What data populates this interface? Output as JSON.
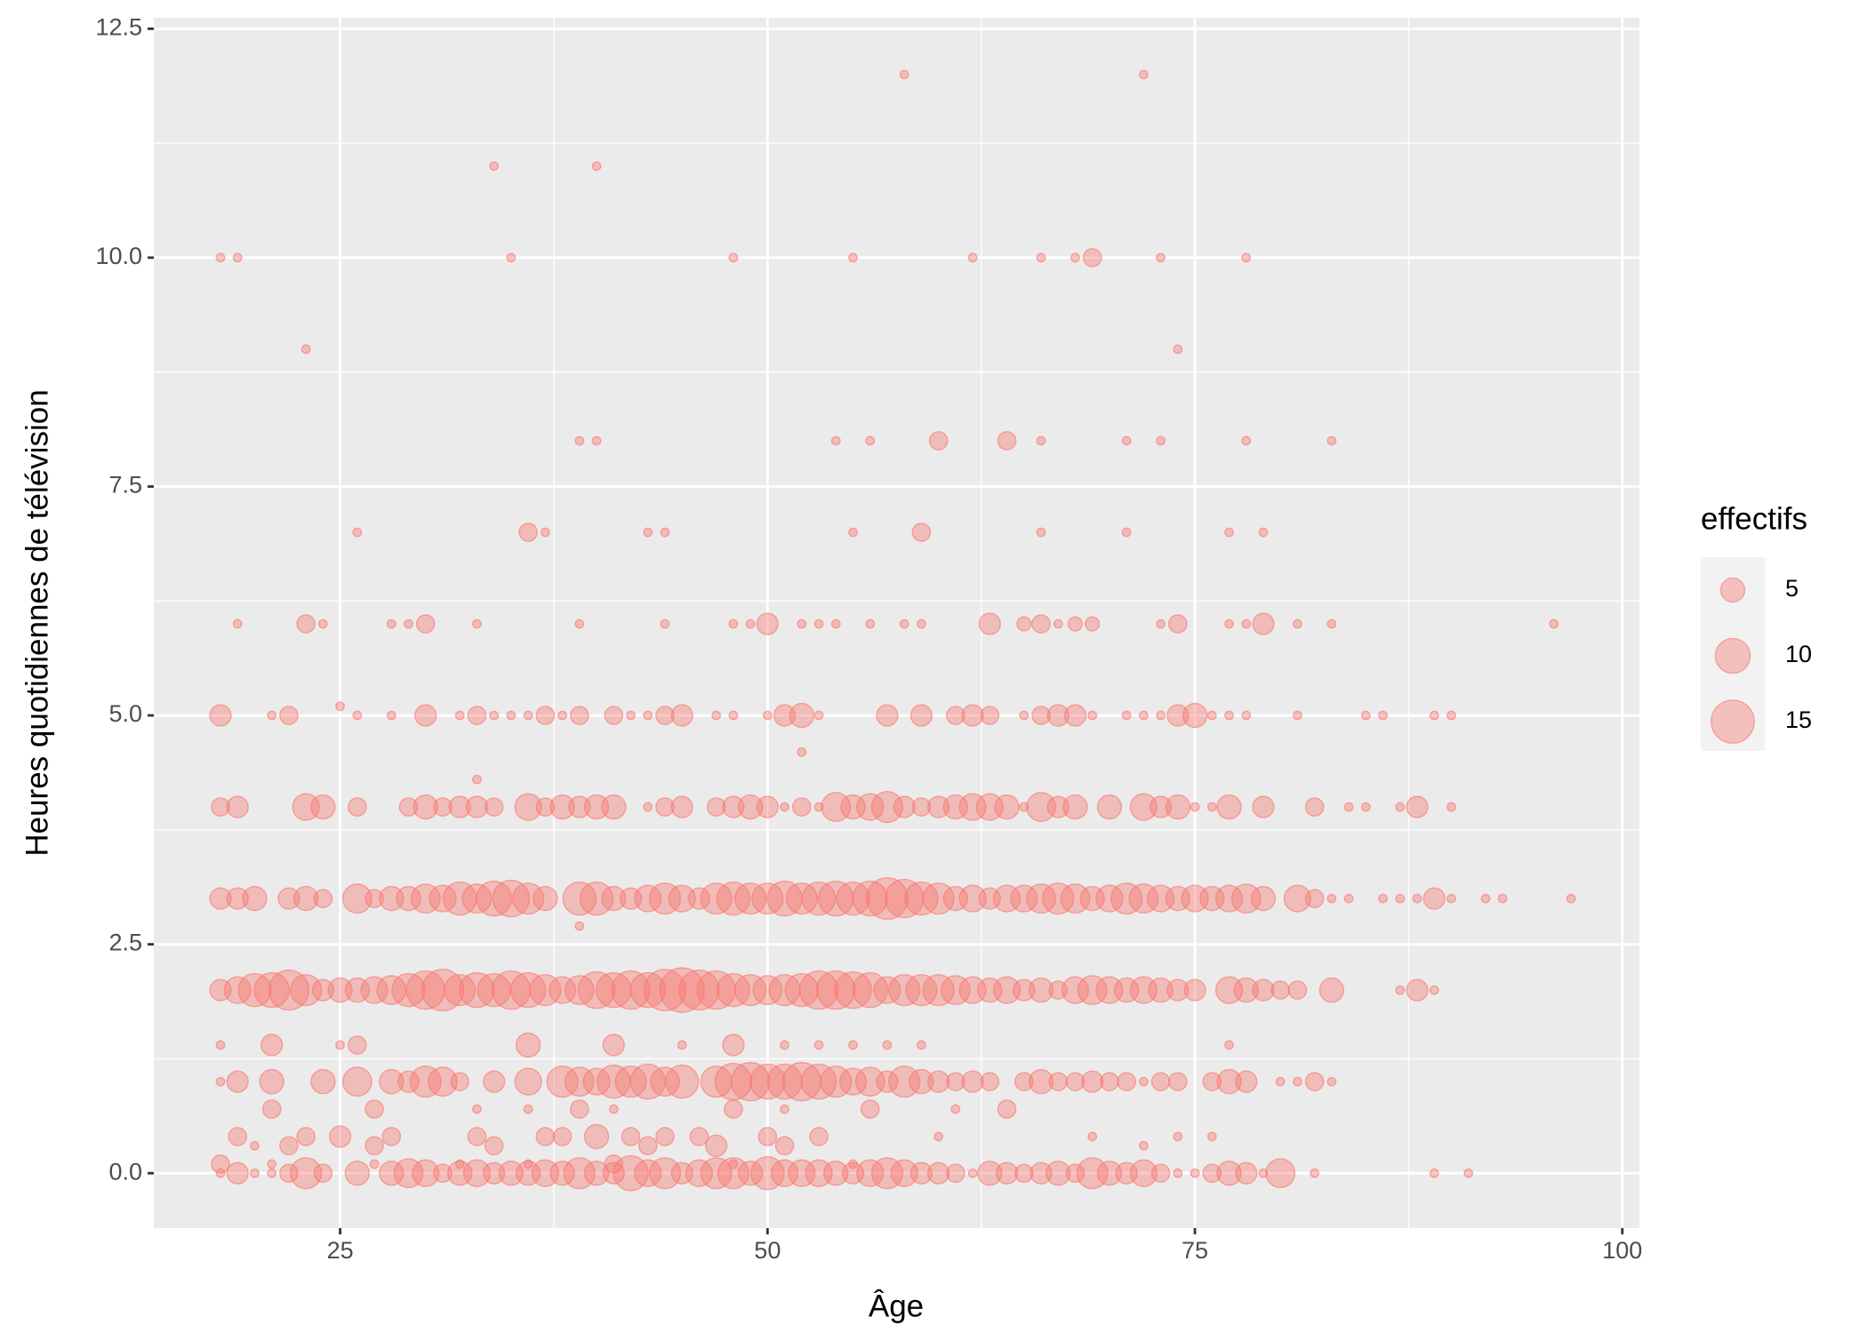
{
  "chart_data": {
    "type": "scatter",
    "x_label": "Âge",
    "y_label": "Heures quotidiennes de télévision",
    "xlim": [
      14.1,
      101
    ],
    "ylim": [
      -0.6,
      12.62
    ],
    "xticks": [
      25,
      50,
      75,
      100
    ],
    "yticks": [
      {
        "value": 0,
        "label": "0.0"
      },
      2.5,
      {
        "value": 5,
        "label": "5.0"
      },
      7.5,
      {
        "value": 10,
        "label": "10.0"
      },
      12.5
    ],
    "xminor": [
      37.5,
      62.5,
      87.5
    ],
    "yminor": [
      1.25,
      3.75,
      6.25,
      8.75,
      11.25
    ],
    "grid": true,
    "color": "#F8766D",
    "size_legend": {
      "title": "effectifs",
      "breaks": [
        5,
        10,
        15
      ]
    },
    "x": [
      58,
      72,
      34,
      40,
      18,
      19,
      35,
      48,
      55,
      62,
      66,
      68,
      69,
      73,
      78,
      23,
      74,
      39,
      40,
      54,
      56,
      60,
      64,
      66,
      71,
      73,
      78,
      83,
      26,
      36,
      37,
      43,
      44,
      55,
      59,
      66,
      71,
      77,
      79,
      19,
      23,
      24,
      28,
      29,
      30,
      33,
      39,
      44,
      48,
      49,
      50,
      52,
      53,
      54,
      56,
      58,
      59,
      63,
      65,
      66,
      67,
      68,
      69,
      73,
      74,
      77,
      78,
      79,
      81,
      83,
      96,
      25,
      18,
      21,
      22,
      26,
      28,
      30,
      32,
      33,
      34,
      35,
      36,
      37,
      38,
      39,
      41,
      42,
      43,
      44,
      45,
      47,
      48,
      50,
      51,
      52,
      53,
      57,
      59,
      61,
      62,
      63,
      65,
      66,
      67,
      68,
      69,
      71,
      72,
      73,
      74,
      75,
      76,
      77,
      78,
      81,
      85,
      86,
      89,
      90,
      52,
      33,
      18,
      19,
      23,
      24,
      26,
      29,
      30,
      31,
      32,
      33,
      34,
      36,
      37,
      38,
      39,
      40,
      41,
      43,
      44,
      45,
      47,
      48,
      49,
      50,
      51,
      52,
      53,
      54,
      55,
      56,
      57,
      58,
      59,
      60,
      61,
      62,
      63,
      64,
      65,
      66,
      67,
      68,
      70,
      72,
      73,
      74,
      75,
      76,
      77,
      79,
      82,
      84,
      85,
      87,
      88,
      90,
      18,
      19,
      20,
      22,
      23,
      24,
      26,
      27,
      28,
      29,
      30,
      31,
      32,
      33,
      34,
      35,
      36,
      37,
      39,
      40,
      41,
      42,
      43,
      44,
      45,
      46,
      47,
      48,
      49,
      50,
      51,
      52,
      53,
      54,
      55,
      56,
      57,
      58,
      59,
      60,
      61,
      62,
      63,
      64,
      65,
      66,
      67,
      68,
      69,
      70,
      71,
      72,
      73,
      74,
      75,
      76,
      77,
      78,
      79,
      81,
      82,
      83,
      84,
      86,
      87,
      88,
      89,
      90,
      92,
      93,
      97,
      39,
      18,
      19,
      20,
      21,
      22,
      23,
      24,
      25,
      26,
      27,
      28,
      29,
      30,
      31,
      32,
      33,
      34,
      35,
      36,
      37,
      38,
      39,
      40,
      41,
      42,
      43,
      44,
      45,
      46,
      47,
      48,
      49,
      50,
      51,
      52,
      53,
      54,
      55,
      56,
      57,
      58,
      59,
      60,
      61,
      62,
      63,
      64,
      65,
      66,
      67,
      68,
      69,
      70,
      71,
      72,
      73,
      74,
      75,
      77,
      78,
      79,
      80,
      81,
      83,
      87,
      88,
      89,
      18,
      21,
      25,
      26,
      36,
      41,
      45,
      48,
      51,
      53,
      55,
      57,
      59,
      77,
      18,
      19,
      21,
      24,
      26,
      28,
      29,
      30,
      31,
      32,
      34,
      36,
      38,
      39,
      40,
      41,
      42,
      43,
      44,
      45,
      47,
      48,
      49,
      50,
      51,
      52,
      53,
      54,
      55,
      56,
      57,
      58,
      59,
      60,
      61,
      62,
      63,
      65,
      66,
      67,
      68,
      69,
      70,
      71,
      72,
      73,
      74,
      76,
      77,
      78,
      80,
      81,
      82,
      83,
      21,
      27,
      33,
      36,
      39,
      41,
      48,
      51,
      56,
      61,
      64,
      19,
      23,
      25,
      28,
      33,
      37,
      38,
      40,
      42,
      44,
      46,
      50,
      53,
      60,
      69,
      74,
      76,
      20,
      22,
      27,
      34,
      43,
      47,
      51,
      72,
      18,
      21,
      27,
      32,
      36,
      41,
      48,
      55,
      18,
      19,
      20,
      21,
      22,
      23,
      24,
      26,
      28,
      29,
      30,
      31,
      32,
      33,
      34,
      35,
      36,
      37,
      38,
      39,
      40,
      41,
      42,
      43,
      44,
      45,
      46,
      47,
      48,
      49,
      50,
      51,
      52,
      53,
      54,
      55,
      56,
      57,
      58,
      59,
      60,
      61,
      62,
      63,
      64,
      65,
      66,
      67,
      68,
      69,
      70,
      71,
      72,
      73,
      74,
      75,
      76,
      77,
      78,
      79,
      80,
      82,
      89,
      91
    ],
    "values": [
      12,
      12,
      11,
      11,
      10,
      10,
      10,
      10,
      10,
      10,
      10,
      10,
      10,
      10,
      10,
      9,
      9,
      8,
      8,
      8,
      8,
      8,
      8,
      8,
      8,
      8,
      8,
      8,
      7,
      7,
      7,
      7,
      7,
      7,
      7,
      7,
      7,
      7,
      7,
      6,
      6,
      6,
      6,
      6,
      6,
      6,
      6,
      6,
      6,
      6,
      6,
      6,
      6,
      6,
      6,
      6,
      6,
      6,
      6,
      6,
      6,
      6,
      6,
      6,
      6,
      6,
      6,
      6,
      6,
      6,
      6,
      5.1,
      5,
      5,
      5,
      5,
      5,
      5,
      5,
      5,
      5,
      5,
      5,
      5,
      5,
      5,
      5,
      5,
      5,
      5,
      5,
      5,
      5,
      5,
      5,
      5,
      5,
      5,
      5,
      5,
      5,
      5,
      5,
      5,
      5,
      5,
      5,
      5,
      5,
      5,
      5,
      5,
      5,
      5,
      5,
      5,
      5,
      5,
      5,
      5,
      4.6,
      4.3,
      4,
      4,
      4,
      4,
      4,
      4,
      4,
      4,
      4,
      4,
      4,
      4,
      4,
      4,
      4,
      4,
      4,
      4,
      4,
      4,
      4,
      4,
      4,
      4,
      4,
      4,
      4,
      4,
      4,
      4,
      4,
      4,
      4,
      4,
      4,
      4,
      4,
      4,
      4,
      4,
      4,
      4,
      4,
      4,
      4,
      4,
      4,
      4,
      4,
      4,
      4,
      4,
      4,
      4,
      4,
      4,
      3,
      3,
      3,
      3,
      3,
      3,
      3,
      3,
      3,
      3,
      3,
      3,
      3,
      3,
      3,
      3,
      3,
      3,
      3,
      3,
      3,
      3,
      3,
      3,
      3,
      3,
      3,
      3,
      3,
      3,
      3,
      3,
      3,
      3,
      3,
      3,
      3,
      3,
      3,
      3,
      3,
      3,
      3,
      3,
      3,
      3,
      3,
      3,
      3,
      3,
      3,
      3,
      3,
      3,
      3,
      3,
      3,
      3,
      3,
      3,
      3,
      3,
      3,
      3,
      3,
      3,
      3,
      3,
      3,
      3,
      3,
      2.7,
      2,
      2,
      2,
      2,
      2,
      2,
      2,
      2,
      2,
      2,
      2,
      2,
      2,
      2,
      2,
      2,
      2,
      2,
      2,
      2,
      2,
      2,
      2,
      2,
      2,
      2,
      2,
      2,
      2,
      2,
      2,
      2,
      2,
      2,
      2,
      2,
      2,
      2,
      2,
      2,
      2,
      2,
      2,
      2,
      2,
      2,
      2,
      2,
      2,
      2,
      2,
      2,
      2,
      2,
      2,
      2,
      2,
      2,
      2,
      2,
      2,
      2,
      2,
      2,
      2,
      2,
      2,
      1.4,
      1.4,
      1.4,
      1.4,
      1.4,
      1.4,
      1.4,
      1.4,
      1.4,
      1.4,
      1.4,
      1.4,
      1.4,
      1.4,
      1,
      1,
      1,
      1,
      1,
      1,
      1,
      1,
      1,
      1,
      1,
      1,
      1,
      1,
      1,
      1,
      1,
      1,
      1,
      1,
      1,
      1,
      1,
      1,
      1,
      1,
      1,
      1,
      1,
      1,
      1,
      1,
      1,
      1,
      1,
      1,
      1,
      1,
      1,
      1,
      1,
      1,
      1,
      1,
      1,
      1,
      1,
      1,
      1,
      1,
      1,
      1,
      1,
      1,
      0.7,
      0.7,
      0.7,
      0.7,
      0.7,
      0.7,
      0.7,
      0.7,
      0.7,
      0.7,
      0.7,
      0.4,
      0.4,
      0.4,
      0.4,
      0.4,
      0.4,
      0.4,
      0.4,
      0.4,
      0.4,
      0.4,
      0.4,
      0.4,
      0.4,
      0.4,
      0.4,
      0.4,
      0.3,
      0.3,
      0.3,
      0.3,
      0.3,
      0.3,
      0.3,
      0.3,
      0.1,
      0.1,
      0.1,
      0.1,
      0.1,
      0.1,
      0.1,
      0.1,
      0,
      0,
      0,
      0,
      0,
      0,
      0,
      0,
      0,
      0,
      0,
      0,
      0,
      0,
      0,
      0,
      0,
      0,
      0,
      0,
      0,
      0,
      0,
      0,
      0,
      0,
      0,
      0,
      0,
      0,
      0,
      0,
      0,
      0,
      0,
      0,
      0,
      0,
      0,
      0,
      0,
      0,
      0,
      0,
      0,
      0,
      0,
      0,
      0,
      0,
      0,
      0,
      0,
      0,
      0,
      0,
      0,
      0,
      0,
      0,
      0,
      0,
      0,
      0
    ],
    "sizes": [
      1,
      1,
      1,
      1,
      1,
      1,
      1,
      1,
      1,
      1,
      1,
      1,
      3,
      1,
      1,
      1,
      1,
      1,
      1,
      1,
      1,
      3,
      3,
      1,
      1,
      1,
      1,
      1,
      1,
      3,
      1,
      1,
      1,
      1,
      3,
      1,
      1,
      1,
      1,
      1,
      3,
      1,
      1,
      1,
      3,
      1,
      1,
      1,
      1,
      1,
      4,
      1,
      1,
      1,
      1,
      1,
      1,
      4,
      2,
      3,
      1,
      2,
      2,
      1,
      3,
      1,
      1,
      4,
      1,
      1,
      1,
      1,
      4,
      1,
      3,
      1,
      1,
      4,
      1,
      3,
      1,
      1,
      1,
      3,
      1,
      3,
      3,
      1,
      1,
      3,
      4,
      1,
      1,
      1,
      4,
      5,
      1,
      4,
      4,
      3,
      4,
      3,
      1,
      3,
      4,
      4,
      1,
      1,
      1,
      1,
      4,
      5,
      1,
      1,
      1,
      1,
      1,
      1,
      1,
      1,
      1,
      1,
      3,
      4,
      6,
      5,
      3,
      3,
      5,
      3,
      4,
      4,
      3,
      6,
      3,
      5,
      4,
      5,
      5,
      1,
      3,
      4,
      3,
      4,
      5,
      4,
      1,
      3,
      1,
      7,
      5,
      6,
      8,
      4,
      3,
      4,
      5,
      6,
      6,
      5,
      1,
      7,
      4,
      5,
      5,
      6,
      4,
      5,
      1,
      1,
      5,
      4,
      3,
      1,
      1,
      1,
      4,
      1,
      4,
      4,
      5,
      4,
      5,
      3,
      7,
      3,
      5,
      5,
      7,
      6,
      9,
      7,
      10,
      11,
      8,
      5,
      9,
      9,
      5,
      4,
      6,
      8,
      6,
      4,
      8,
      9,
      8,
      8,
      10,
      8,
      9,
      10,
      9,
      10,
      14,
      12,
      9,
      8,
      5,
      6,
      4,
      6,
      6,
      7,
      8,
      7,
      5,
      6,
      8,
      7,
      6,
      5,
      6,
      5,
      6,
      7,
      5,
      6,
      3,
      1,
      1,
      1,
      1,
      1,
      4,
      1,
      1,
      1,
      1,
      1,
      4,
      6,
      9,
      10,
      13,
      8,
      4,
      5,
      5,
      6,
      7,
      9,
      12,
      14,
      8,
      10,
      9,
      12,
      10,
      8,
      6,
      7,
      11,
      10,
      12,
      10,
      14,
      16,
      13,
      12,
      9,
      8,
      7,
      8,
      9,
      12,
      12,
      11,
      10,
      6,
      8,
      8,
      8,
      7,
      6,
      5,
      6,
      4,
      5,
      3,
      6,
      7,
      6,
      5,
      6,
      5,
      4,
      4,
      6,
      5,
      4,
      3,
      3,
      5,
      1,
      4,
      1,
      1,
      4,
      1,
      3,
      5,
      4,
      1,
      4,
      1,
      1,
      1,
      1,
      1,
      1,
      1,
      4,
      5,
      5,
      7,
      5,
      4,
      8,
      7,
      3,
      4,
      6,
      8,
      7,
      6,
      9,
      8,
      10,
      7,
      9,
      8,
      11,
      12,
      10,
      10,
      12,
      10,
      8,
      6,
      7,
      4,
      8,
      5,
      4,
      3,
      4,
      3,
      3,
      5,
      3,
      3,
      4,
      3,
      3,
      1,
      3,
      3,
      3,
      5,
      4,
      1,
      1,
      3,
      1,
      3,
      3,
      1,
      1,
      3,
      1,
      3,
      1,
      3,
      1,
      3,
      3,
      3,
      4,
      3,
      3,
      3,
      3,
      5,
      3,
      3,
      3,
      3,
      3,
      1,
      1,
      1,
      1,
      1,
      3,
      3,
      3,
      3,
      4,
      3,
      1,
      3,
      1,
      1,
      1,
      1,
      3,
      1,
      1,
      1,
      4,
      1,
      1,
      3,
      8,
      3,
      5,
      5,
      7,
      6,
      3,
      5,
      6,
      4,
      5,
      5,
      6,
      5,
      8,
      5,
      4,
      10,
      6,
      8,
      4,
      6,
      8,
      8,
      5,
      9,
      6,
      6,
      6,
      5,
      4,
      6,
      8,
      6,
      4,
      4,
      3,
      1,
      5,
      4,
      3,
      4,
      5,
      3,
      8,
      5,
      4,
      6,
      3,
      1,
      1,
      3,
      5,
      4,
      1,
      7,
      1,
      1,
      1
    ]
  }
}
